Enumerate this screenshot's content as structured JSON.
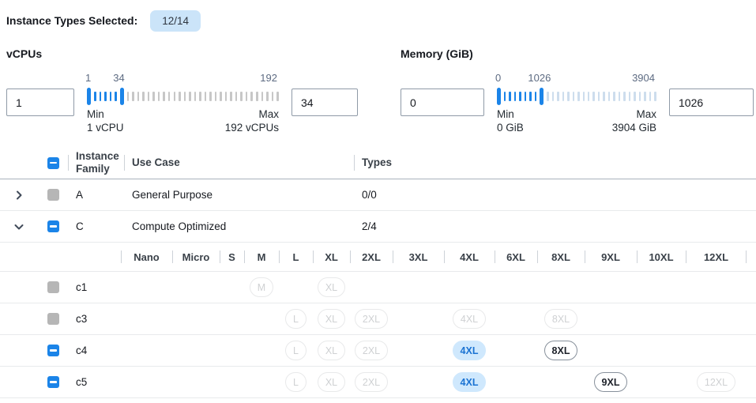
{
  "colors": {
    "accent": "#1b84e8",
    "badge_bg": "#cbe4f9",
    "chip_sel_bg": "#cfe8fd",
    "chip_sel_text": "#1b73d3",
    "tick_off": "#c7c7c7",
    "tick_off_mem": "#cddded"
  },
  "topbar": {
    "label": "Instance Types Selected:",
    "badge": "12/14"
  },
  "filters": [
    {
      "id": "vcpus",
      "label": "vCPUs",
      "lower_value": "1",
      "upper_value": "34",
      "slider": {
        "lower_tick_label": "1",
        "upper_tick_label": "34",
        "end_tick_label": "192",
        "total_ticks": 37,
        "upper_handle_index": 6,
        "min_caption": "Min",
        "min_detail": "1 vCPU",
        "max_caption": "Max",
        "max_detail": "192 vCPUs"
      }
    },
    {
      "id": "memory",
      "label": "Memory (GiB)",
      "lower_value": "0",
      "upper_value": "1026",
      "slider": {
        "lower_tick_label": "0",
        "upper_tick_label": "1026",
        "end_tick_label": "3904",
        "total_ticks": 31,
        "upper_handle_index": 8,
        "min_caption": "Min",
        "min_detail": "0 GiB",
        "max_caption": "Max",
        "max_detail": "3904 GiB"
      }
    }
  ],
  "table": {
    "header": {
      "family": "Instance Family",
      "use_case": "Use Case",
      "types": "Types",
      "select_all_checkbox_state": "indeterminate"
    },
    "size_columns": [
      "Nano",
      "Micro",
      "S",
      "M",
      "L",
      "XL",
      "2XL",
      "3XL",
      "4XL",
      "6XL",
      "8XL",
      "9XL",
      "10XL",
      "12XL"
    ],
    "size_column_widths": [
      65,
      60,
      31,
      44,
      43,
      47,
      54,
      65,
      64,
      54,
      60,
      66,
      62,
      77
    ],
    "family_rows": [
      {
        "name": "A",
        "use_case": "General Purpose",
        "types": "0/0",
        "expanded": false,
        "checkbox": "disabled"
      },
      {
        "name": "C",
        "use_case": "Compute Optimized",
        "types": "2/4",
        "expanded": true,
        "checkbox": "indeterminate"
      }
    ],
    "instance_rows": [
      {
        "name": "c1",
        "checkbox": "disabled",
        "chips": [
          {
            "size": "M",
            "state": "disabled"
          },
          {
            "size": "XL",
            "state": "disabled"
          }
        ]
      },
      {
        "name": "c3",
        "checkbox": "disabled",
        "chips": [
          {
            "size": "L",
            "state": "disabled"
          },
          {
            "size": "XL",
            "state": "disabled"
          },
          {
            "size": "2XL",
            "state": "disabled"
          },
          {
            "size": "4XL",
            "state": "disabled"
          },
          {
            "size": "8XL",
            "state": "disabled"
          }
        ]
      },
      {
        "name": "c4",
        "checkbox": "indeterminate",
        "chips": [
          {
            "size": "L",
            "state": "disabled"
          },
          {
            "size": "XL",
            "state": "disabled"
          },
          {
            "size": "2XL",
            "state": "disabled"
          },
          {
            "size": "4XL",
            "state": "selected"
          },
          {
            "size": "8XL",
            "state": "enabled"
          }
        ]
      },
      {
        "name": "c5",
        "checkbox": "indeterminate",
        "chips": [
          {
            "size": "L",
            "state": "disabled"
          },
          {
            "size": "XL",
            "state": "disabled"
          },
          {
            "size": "2XL",
            "state": "disabled"
          },
          {
            "size": "4XL",
            "state": "selected"
          },
          {
            "size": "9XL",
            "state": "enabled"
          },
          {
            "size": "12XL",
            "state": "disabled"
          }
        ]
      }
    ]
  }
}
